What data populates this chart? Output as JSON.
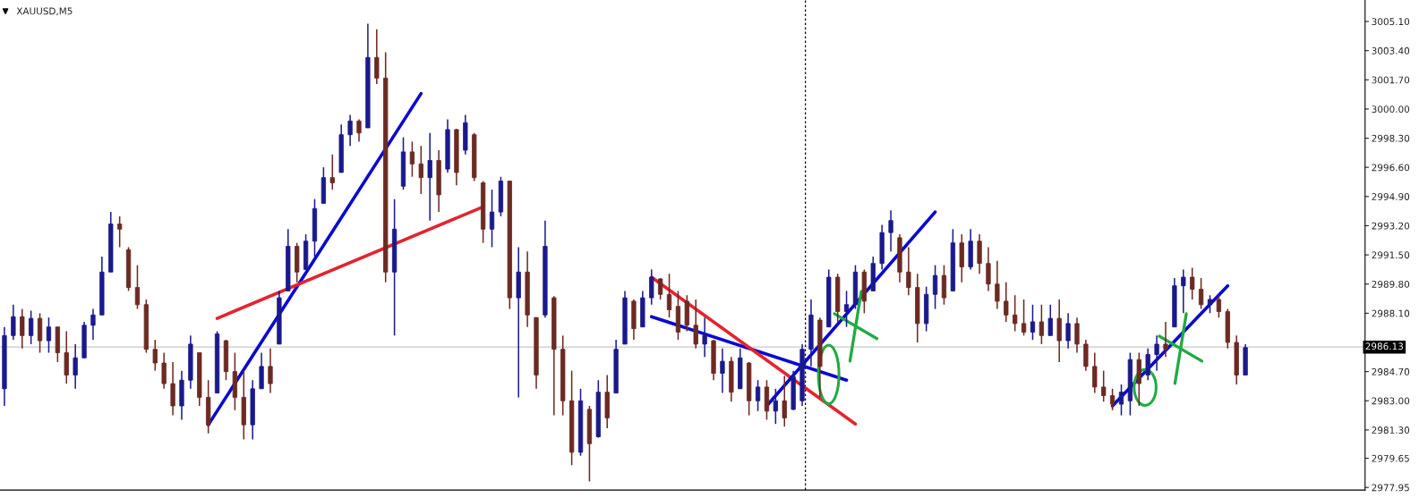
{
  "chart_data": {
    "type": "candlestick",
    "title": "XAUUSD,M5",
    "categories": [
      null,
      null,
      null,
      null,
      null,
      null,
      null,
      null,
      null,
      null,
      null,
      null,
      null,
      null,
      null,
      null,
      null,
      null,
      null,
      null,
      null,
      null,
      null,
      null,
      null,
      null,
      null,
      null,
      null,
      null,
      null,
      null,
      null,
      null,
      null,
      null,
      null,
      null,
      null,
      null,
      null,
      null,
      null,
      null,
      null,
      null,
      null,
      null,
      null,
      null,
      null,
      null,
      null,
      null,
      null,
      null,
      null,
      null,
      null,
      null,
      null,
      null,
      null,
      null,
      null,
      null,
      null,
      null,
      null,
      null,
      null,
      null,
      null,
      null,
      null,
      null,
      null,
      null,
      null,
      null,
      null,
      null,
      null,
      null,
      null,
      null,
      null,
      null,
      null,
      null,
      null,
      null,
      null,
      null,
      null,
      null,
      null,
      null,
      null,
      null,
      null,
      null,
      null,
      null,
      null,
      null,
      null,
      null,
      null,
      null,
      null,
      null,
      null,
      null,
      null,
      null,
      null,
      null,
      null,
      null,
      null,
      null,
      null,
      null,
      null,
      null,
      null,
      null,
      null,
      null,
      null,
      null,
      null,
      null,
      null,
      null,
      null,
      null,
      null,
      null,
      null,
      null,
      null,
      null,
      null,
      null,
      null,
      null,
      null,
      null,
      null,
      null,
      null,
      null
    ],
    "ohlc": [
      [
        2983.7,
        2987.3,
        2982.7,
        2986.8
      ],
      [
        2986.8,
        2988.6,
        2986.55,
        2987.9
      ],
      [
        2987.9,
        2988.35,
        2986.05,
        2986.8
      ],
      [
        2986.8,
        2988.25,
        2986.3,
        2987.8
      ],
      [
        2987.8,
        2988.1,
        2985.8,
        2986.5
      ],
      [
        2986.5,
        2987.85,
        2985.8,
        2987.3
      ],
      [
        2987.3,
        2987.3,
        2985.25,
        2985.8
      ],
      [
        2985.8,
        2987.05,
        2984.0,
        2984.5
      ],
      [
        2984.5,
        2986.3,
        2983.7,
        2985.5
      ],
      [
        2985.5,
        2987.6,
        2985.5,
        2987.4
      ],
      [
        2987.4,
        2988.35,
        2986.55,
        2988.0
      ],
      [
        2988.0,
        2991.4,
        2988.0,
        2990.5
      ],
      [
        2990.5,
        2994.0,
        2990.5,
        2993.3
      ],
      [
        2993.3,
        2993.75,
        2991.95,
        2993.0
      ],
      [
        2991.8,
        2991.95,
        2989.4,
        2989.6
      ],
      [
        2989.6,
        2990.9,
        2988.35,
        2988.6
      ],
      [
        2988.6,
        2988.9,
        2985.8,
        2986.0
      ],
      [
        2986.0,
        2986.55,
        2984.75,
        2985.2
      ],
      [
        2985.2,
        2985.8,
        2983.7,
        2984.0
      ],
      [
        2984.0,
        2985.25,
        2982.15,
        2982.7
      ],
      [
        2982.7,
        2984.75,
        2981.9,
        2984.2
      ],
      [
        2984.2,
        2986.8,
        2983.7,
        2986.3
      ],
      [
        2985.8,
        2985.8,
        2982.7,
        2983.2
      ],
      [
        2983.2,
        2984.2,
        2981.1,
        2981.6
      ],
      [
        2983.45,
        2987.05,
        2983.45,
        2986.9
      ],
      [
        2986.5,
        2986.55,
        2984.2,
        2984.7
      ],
      [
        2984.7,
        2985.8,
        2982.45,
        2983.2
      ],
      [
        2983.2,
        2984.75,
        2980.75,
        2981.6
      ],
      [
        2981.6,
        2984.2,
        2980.75,
        2983.7
      ],
      [
        2983.7,
        2985.8,
        2983.7,
        2985.0
      ],
      [
        2985.0,
        2986.05,
        2983.45,
        2984.0
      ],
      [
        2986.3,
        2989.4,
        2986.3,
        2989.0
      ],
      [
        2989.4,
        2993.0,
        2989.4,
        2992.0
      ],
      [
        2992.0,
        2992.2,
        2989.9,
        2990.5
      ],
      [
        2990.65,
        2992.7,
        2990.65,
        2992.3
      ],
      [
        2992.3,
        2994.75,
        2991.4,
        2994.2
      ],
      [
        2994.5,
        2996.6,
        2994.5,
        2996.0
      ],
      [
        2996.0,
        2997.35,
        2995.3,
        2995.7
      ],
      [
        2996.3,
        2999.1,
        2996.3,
        2998.5
      ],
      [
        2998.5,
        2999.65,
        2997.85,
        2999.3
      ],
      [
        2999.3,
        2999.4,
        2998.1,
        2998.6
      ],
      [
        2998.9,
        3004.97,
        2998.9,
        3003.0
      ],
      [
        3003.0,
        3004.65,
        3001.46,
        3001.8
      ],
      [
        3001.8,
        3003.3,
        2989.9,
        2990.5
      ],
      [
        2990.5,
        2994.75,
        2986.8,
        2993.0
      ],
      [
        2995.5,
        2998.35,
        2995.3,
        2997.5
      ],
      [
        2997.5,
        2998.1,
        2996.05,
        2996.8
      ],
      [
        2996.8,
        2997.85,
        2995.05,
        2996.0
      ],
      [
        2996.0,
        2998.6,
        2993.5,
        2997.0
      ],
      [
        2997.0,
        2997.6,
        2994.0,
        2995.0
      ],
      [
        2996.5,
        2999.4,
        2996.3,
        2998.8
      ],
      [
        2998.8,
        2998.85,
        2995.55,
        2996.3
      ],
      [
        2997.6,
        2999.65,
        2997.35,
        2999.2
      ],
      [
        2998.5,
        2998.6,
        2995.8,
        2996.0
      ],
      [
        2995.7,
        2995.8,
        2992.2,
        2993.0
      ],
      [
        2993.0,
        2995.3,
        2991.95,
        2994.0
      ],
      [
        2994.0,
        2996.05,
        2993.75,
        2995.8
      ],
      [
        2995.8,
        2995.8,
        2988.35,
        2989.0
      ],
      [
        2989.0,
        2991.95,
        2983.2,
        2990.5
      ],
      [
        2990.5,
        2991.7,
        2987.3,
        2988.0
      ],
      [
        2987.85,
        2987.85,
        2983.7,
        2984.5
      ],
      [
        2988.0,
        2993.5,
        2987.85,
        2992.0
      ],
      [
        2989.0,
        2989.1,
        2982.15,
        2986.0
      ],
      [
        2986.0,
        2986.8,
        2982.15,
        2983.0
      ],
      [
        2983.0,
        2984.75,
        2979.25,
        2980.0
      ],
      [
        2980.0,
        2983.7,
        2979.8,
        2983.0
      ],
      [
        2982.5,
        2982.7,
        2978.3,
        2980.5
      ],
      [
        2980.9,
        2984.2,
        2980.85,
        2983.5
      ],
      [
        2983.5,
        2984.5,
        2981.4,
        2982.0
      ],
      [
        2983.45,
        2986.55,
        2983.45,
        2986.0
      ],
      [
        2986.3,
        2989.4,
        2986.3,
        2989.0
      ],
      [
        2988.8,
        2988.9,
        2986.55,
        2987.2
      ],
      [
        2987.3,
        2989.4,
        2987.3,
        2989.0
      ],
      [
        2989.0,
        2990.65,
        2988.6,
        2990.2
      ],
      [
        2990.1,
        2990.15,
        2988.9,
        2989.2
      ],
      [
        2989.2,
        2990.4,
        2987.85,
        2988.3
      ],
      [
        2988.5,
        2989.4,
        2986.55,
        2987.0
      ],
      [
        2988.8,
        2989.15,
        2987.05,
        2987.4
      ],
      [
        2987.4,
        2988.9,
        2986.05,
        2986.3
      ],
      [
        2986.3,
        2987.85,
        2985.55,
        2986.8
      ],
      [
        2986.5,
        2986.55,
        2984.2,
        2984.6
      ],
      [
        2984.6,
        2986.05,
        2983.45,
        2985.3
      ],
      [
        2985.3,
        2985.55,
        2982.95,
        2983.5
      ],
      [
        2983.7,
        2986.05,
        2983.7,
        2985.5
      ],
      [
        2985.2,
        2985.25,
        2982.15,
        2983.0
      ],
      [
        2983.0,
        2984.2,
        2982.4,
        2983.8
      ],
      [
        2983.8,
        2984.2,
        2981.9,
        2982.4
      ],
      [
        2982.4,
        2983.7,
        2981.65,
        2983.0
      ],
      [
        2983.0,
        2984.45,
        2981.5,
        2982.0
      ],
      [
        2982.5,
        2984.75,
        2982.45,
        2984.4
      ],
      [
        2983.0,
        2986.3,
        2982.7,
        2986.0
      ],
      [
        2986.0,
        2988.9,
        2985.0,
        2988.0
      ],
      [
        2987.7,
        2987.85,
        2983.2,
        2985.0
      ],
      [
        2987.3,
        2990.65,
        2987.3,
        2990.2
      ],
      [
        2990.2,
        2990.4,
        2987.6,
        2988.2
      ],
      [
        2988.2,
        2989.4,
        2987.3,
        2988.6
      ],
      [
        2988.6,
        2990.9,
        2988.35,
        2990.5
      ],
      [
        2990.5,
        2990.65,
        2988.1,
        2988.8
      ],
      [
        2989.4,
        2991.4,
        2989.4,
        2991.0
      ],
      [
        2991.0,
        2993.25,
        2990.65,
        2992.8
      ],
      [
        2992.8,
        2994.1,
        2991.7,
        2993.5
      ],
      [
        2992.5,
        2992.7,
        2989.9,
        2990.5
      ],
      [
        2990.5,
        2991.95,
        2989.15,
        2989.6
      ],
      [
        2989.6,
        2990.4,
        2986.4,
        2987.5
      ],
      [
        2987.5,
        2989.65,
        2987.05,
        2989.2
      ],
      [
        2989.2,
        2990.9,
        2988.35,
        2990.3
      ],
      [
        2990.3,
        2990.9,
        2988.6,
        2989.0
      ],
      [
        2989.4,
        2993.0,
        2989.4,
        2992.2
      ],
      [
        2992.2,
        2992.7,
        2989.9,
        2990.8
      ],
      [
        2990.8,
        2993.0,
        2990.65,
        2992.3
      ],
      [
        2992.3,
        2992.7,
        2990.4,
        2991.0
      ],
      [
        2991.0,
        2991.95,
        2989.4,
        2989.8
      ],
      [
        2989.8,
        2991.15,
        2988.35,
        2988.8
      ],
      [
        2988.8,
        2989.9,
        2987.6,
        2988.0
      ],
      [
        2988.0,
        2989.15,
        2987.05,
        2987.5
      ],
      [
        2987.5,
        2988.9,
        2986.8,
        2987.0
      ],
      [
        2987.0,
        2988.6,
        2986.55,
        2987.6
      ],
      [
        2987.6,
        2988.6,
        2986.3,
        2986.8
      ],
      [
        2986.8,
        2988.6,
        2986.8,
        2987.8
      ],
      [
        2987.8,
        2988.9,
        2985.25,
        2986.5
      ],
      [
        2986.5,
        2988.1,
        2986.05,
        2987.5
      ],
      [
        2987.5,
        2987.85,
        2985.8,
        2986.3
      ],
      [
        2986.3,
        2986.55,
        2984.75,
        2985.0
      ],
      [
        2985.0,
        2985.8,
        2983.45,
        2983.8
      ],
      [
        2983.8,
        2984.75,
        2982.95,
        2983.3
      ],
      [
        2983.3,
        2983.7,
        2982.45,
        2982.8
      ],
      [
        2982.8,
        2983.95,
        2982.15,
        2983.5
      ],
      [
        2983.0,
        2985.8,
        2982.15,
        2985.4
      ],
      [
        2985.4,
        2985.8,
        2982.7,
        2984.0
      ],
      [
        2984.5,
        2986.05,
        2984.2,
        2985.7
      ],
      [
        2985.7,
        2986.8,
        2984.75,
        2986.3
      ],
      [
        2986.3,
        2987.6,
        2985.55,
        2986.0
      ],
      [
        2987.3,
        2990.15,
        2987.3,
        2989.7
      ],
      [
        2989.7,
        2990.65,
        2988.1,
        2990.2
      ],
      [
        2990.2,
        2990.75,
        2988.9,
        2989.5
      ],
      [
        2989.5,
        2990.15,
        2988.35,
        2988.6
      ],
      [
        2988.6,
        2989.15,
        2988.1,
        2988.9
      ],
      [
        2988.9,
        2989.15,
        2987.85,
        2988.2
      ],
      [
        2988.2,
        2988.35,
        2986.05,
        2986.4
      ],
      [
        2986.4,
        2986.8,
        2983.95,
        2984.5
      ],
      [
        2984.5,
        2986.3,
        2984.5,
        2986.1
      ],
      null,
      null,
      null,
      null,
      null,
      null,
      null,
      null,
      null,
      null,
      null,
      null,
      null
    ],
    "colors": [
      "#1a1a8c",
      "#1a1a8c",
      "#6b2a22",
      "#1a1a8c",
      "#6b2a22",
      "#1a1a8c",
      "#6b2a22",
      "#6b2a22",
      "#1a1a8c",
      "#1a1a8c",
      "#1a1a8c",
      "#1a1a8c",
      "#1a1a8c",
      "#6b2a22",
      "#6b2a22",
      "#6b2a22",
      "#6b2a22",
      "#6b2a22",
      "#6b2a22",
      "#6b2a22",
      "#1a1a8c",
      "#1a1a8c",
      "#6b2a22",
      "#6b2a22",
      "#1a1a8c",
      "#6b2a22",
      "#6b2a22",
      "#6b2a22",
      "#1a1a8c",
      "#1a1a8c",
      "#6b2a22",
      "#1a1a8c",
      "#1a1a8c",
      "#6b2a22",
      "#1a1a8c",
      "#1a1a8c",
      "#1a1a8c",
      "#6b2a22",
      "#1a1a8c",
      "#1a1a8c",
      "#6b2a22",
      "#1a1a8c",
      "#6b2a22",
      "#6b2a22",
      "#1a1a8c",
      "#1a1a8c",
      "#6b2a22",
      "#6b2a22",
      "#1a1a8c",
      "#6b2a22",
      "#1a1a8c",
      "#6b2a22",
      "#1a1a8c",
      "#6b2a22",
      "#6b2a22",
      "#1a1a8c",
      "#1a1a8c",
      "#6b2a22",
      "#1a1a8c",
      "#6b2a22",
      "#6b2a22",
      "#1a1a8c",
      "#6b2a22",
      "#6b2a22",
      "#6b2a22",
      "#1a1a8c",
      "#6b2a22",
      "#1a1a8c",
      "#6b2a22",
      "#1a1a8c",
      "#1a1a8c",
      "#6b2a22",
      "#1a1a8c",
      "#1a1a8c",
      "#6b2a22",
      "#6b2a22",
      "#6b2a22",
      "#6b2a22",
      "#6b2a22",
      "#1a1a8c",
      "#6b2a22",
      "#1a1a8c",
      "#6b2a22",
      "#1a1a8c",
      "#6b2a22",
      "#1a1a8c",
      "#6b2a22",
      "#1a1a8c",
      "#6b2a22",
      "#1a1a8c",
      "#1a1a8c",
      "#1a1a8c",
      "#6b2a22",
      "#1a1a8c",
      "#6b2a22",
      "#1a1a8c",
      "#1a1a8c",
      "#6b2a22",
      "#1a1a8c",
      "#1a1a8c",
      "#1a1a8c",
      "#6b2a22",
      "#6b2a22",
      "#6b2a22",
      "#1a1a8c",
      "#1a1a8c",
      "#6b2a22",
      "#1a1a8c",
      "#6b2a22",
      "#1a1a8c",
      "#6b2a22",
      "#6b2a22",
      "#6b2a22",
      "#6b2a22",
      "#6b2a22",
      "#6b2a22",
      "#1a1a8c",
      "#6b2a22",
      "#1a1a8c",
      "#6b2a22",
      "#1a1a8c",
      "#6b2a22",
      "#6b2a22",
      "#6b2a22",
      "#6b2a22",
      "#6b2a22",
      "#1a1a8c",
      "#1a1a8c",
      "#6b2a22",
      "#1a1a8c",
      "#1a1a8c",
      "#6b2a22",
      "#1a1a8c",
      "#1a1a8c",
      "#6b2a22",
      "#6b2a22",
      "#1a1a8c",
      "#6b2a22",
      "#6b2a22",
      "#6b2a22",
      "#1a1a8c",
      null,
      null,
      null,
      null,
      null,
      null,
      null,
      null,
      null,
      null,
      null,
      null,
      null
    ],
    "series": [
      {
        "type": "line",
        "color": "#0a0ad0",
        "values": [
          null,
          null,
          null,
          null,
          null,
          null,
          null,
          null,
          null,
          null,
          null,
          null,
          null,
          null,
          null,
          null,
          null,
          null,
          null,
          null,
          null,
          null,
          null,
          2981.6,
          null,
          null,
          null,
          null,
          null,
          null,
          null,
          null,
          null,
          null,
          null,
          null,
          null,
          null,
          null,
          null,
          null,
          null,
          null,
          null,
          null,
          null,
          null,
          3000.9,
          null,
          null,
          null,
          null,
          null,
          null,
          null,
          null,
          null,
          null,
          null,
          null,
          null,
          null,
          null,
          null,
          null,
          null,
          null,
          null,
          null,
          null,
          null,
          null,
          null,
          null,
          null,
          null,
          null,
          null,
          null,
          null,
          null,
          null,
          null,
          null,
          null,
          null,
          null,
          null,
          null,
          null,
          null,
          null,
          null,
          null,
          null,
          null,
          null,
          null,
          null,
          null,
          null,
          null,
          null,
          null,
          null,
          null,
          null,
          null,
          null,
          null,
          null,
          null,
          null,
          null,
          null,
          null,
          null,
          null,
          null,
          null,
          null,
          null,
          null,
          null,
          null,
          null,
          null,
          null,
          null,
          null,
          null,
          null,
          null,
          null,
          null,
          null,
          null,
          null,
          null,
          null,
          null,
          null,
          null,
          null,
          null,
          null,
          null,
          null,
          null,
          null,
          null,
          null,
          null,
          null
        ]
      },
      {
        "type": "line",
        "color": "#e0262f",
        "values": [
          null,
          null,
          null,
          null,
          null,
          null,
          null,
          null,
          null,
          null,
          null,
          null,
          null,
          null,
          null,
          null,
          null,
          null,
          null,
          null,
          null,
          null,
          null,
          null,
          2987.8,
          null,
          null,
          null,
          null,
          null,
          null,
          null,
          null,
          null,
          null,
          null,
          null,
          null,
          null,
          null,
          null,
          null,
          null,
          null,
          null,
          null,
          null,
          null,
          null,
          null,
          null,
          null,
          null,
          null,
          2994.3,
          null,
          null,
          null,
          null,
          null,
          null,
          null,
          null,
          null,
          null,
          null,
          null,
          null,
          null,
          null,
          null,
          null,
          null,
          null,
          null,
          null,
          null,
          null,
          null,
          null,
          null,
          null,
          null,
          null,
          null,
          null,
          null,
          null,
          null,
          null,
          null,
          null,
          null,
          null,
          null,
          null,
          null,
          null,
          null,
          null,
          null,
          null,
          null,
          null,
          null,
          null,
          null,
          null,
          null,
          null,
          null,
          null,
          null,
          null,
          null,
          null,
          null,
          null,
          null,
          null,
          null,
          null,
          null,
          null,
          null,
          null,
          null,
          null,
          null,
          null,
          null,
          null,
          null,
          null,
          null,
          null,
          null,
          null,
          null,
          null,
          null,
          null,
          null,
          null,
          null,
          null,
          null,
          null,
          null,
          null,
          null,
          null,
          null,
          null
        ]
      },
      {
        "type": "line",
        "color": "#0a0ad0",
        "values": [
          null,
          null,
          null,
          null,
          null,
          null,
          null,
          null,
          null,
          null,
          null,
          null,
          null,
          null,
          null,
          null,
          null,
          null,
          null,
          null,
          null,
          null,
          null,
          null,
          null,
          null,
          null,
          null,
          null,
          null,
          null,
          null,
          null,
          null,
          null,
          null,
          null,
          null,
          null,
          null,
          null,
          null,
          null,
          null,
          null,
          null,
          null,
          null,
          null,
          null,
          null,
          null,
          null,
          null,
          null,
          null,
          null,
          null,
          null,
          null,
          null,
          null,
          null,
          null,
          null,
          null,
          null,
          null,
          null,
          null,
          null,
          null,
          null,
          2987.9,
          null,
          null,
          null,
          null,
          null,
          null,
          null,
          null,
          null,
          null,
          null,
          null,
          null,
          null,
          null,
          null,
          null,
          null,
          null,
          null,
          null,
          2984.2,
          null,
          null,
          null,
          null,
          null,
          null,
          null,
          null,
          null,
          null,
          null,
          null,
          null,
          null,
          null,
          null,
          null,
          null,
          null,
          null,
          null,
          null,
          null,
          null,
          null,
          null,
          null,
          null,
          null,
          null,
          null,
          null,
          null,
          null,
          null,
          null,
          null,
          null,
          null,
          null,
          null,
          null,
          null,
          null,
          null,
          null,
          null,
          null,
          null,
          null,
          null,
          null,
          null,
          null,
          null,
          null,
          null,
          null
        ]
      },
      {
        "type": "line",
        "color": "#e0262f",
        "values": [
          null,
          null,
          null,
          null,
          null,
          null,
          null,
          null,
          null,
          null,
          null,
          null,
          null,
          null,
          null,
          null,
          null,
          null,
          null,
          null,
          null,
          null,
          null,
          null,
          null,
          null,
          null,
          null,
          null,
          null,
          null,
          null,
          null,
          null,
          null,
          null,
          null,
          null,
          null,
          null,
          null,
          null,
          null,
          null,
          null,
          null,
          null,
          null,
          null,
          null,
          null,
          null,
          null,
          null,
          null,
          null,
          null,
          null,
          null,
          null,
          null,
          null,
          null,
          null,
          null,
          null,
          null,
          null,
          null,
          null,
          null,
          null,
          null,
          2990.2,
          null,
          null,
          null,
          null,
          null,
          null,
          null,
          null,
          null,
          null,
          null,
          null,
          null,
          null,
          null,
          null,
          null,
          null,
          null,
          null,
          null,
          null,
          2981.65,
          null,
          null,
          null,
          null,
          null,
          null,
          null,
          null,
          null,
          null,
          null,
          null,
          null,
          null,
          null,
          null,
          null,
          null,
          null,
          null,
          null,
          null,
          null,
          null,
          null,
          null,
          null,
          null,
          null,
          null,
          null,
          null,
          null,
          null,
          null,
          null,
          null,
          null,
          null,
          null,
          null,
          null,
          null,
          null,
          null,
          null,
          null,
          null,
          null,
          null,
          null,
          null,
          null,
          null,
          null,
          null,
          null
        ]
      },
      {
        "type": "line",
        "color": "#0a0ad0",
        "values": [
          null,
          null,
          null,
          null,
          null,
          null,
          null,
          null,
          null,
          null,
          null,
          null,
          null,
          null,
          null,
          null,
          null,
          null,
          null,
          null,
          null,
          null,
          null,
          null,
          null,
          null,
          null,
          null,
          null,
          null,
          null,
          null,
          null,
          null,
          null,
          null,
          null,
          null,
          null,
          null,
          null,
          null,
          null,
          null,
          null,
          null,
          null,
          null,
          null,
          null,
          null,
          null,
          null,
          null,
          null,
          null,
          null,
          null,
          null,
          null,
          null,
          null,
          null,
          null,
          null,
          null,
          null,
          null,
          null,
          null,
          null,
          null,
          null,
          null,
          null,
          null,
          null,
          null,
          null,
          null,
          null,
          null,
          null,
          null,
          null,
          null,
          2982.7,
          null,
          null,
          null,
          null,
          null,
          null,
          null,
          null,
          null,
          null,
          null,
          null,
          null,
          null,
          null,
          null,
          null,
          null,
          2994.0,
          null,
          null,
          null,
          null,
          null,
          null,
          null,
          null,
          null,
          null,
          null,
          null,
          null,
          null,
          null,
          null,
          null,
          null,
          null,
          null,
          null,
          null,
          null,
          null,
          null,
          null,
          null,
          null,
          null,
          null,
          null,
          null,
          null,
          null,
          null,
          null,
          null,
          null,
          null,
          null,
          null,
          null,
          null,
          null,
          null,
          null,
          null,
          null
        ]
      },
      {
        "type": "line",
        "color": "#0a0ad0",
        "values": [
          null,
          null,
          null,
          null,
          null,
          null,
          null,
          null,
          null,
          null,
          null,
          null,
          null,
          null,
          null,
          null,
          null,
          null,
          null,
          null,
          null,
          null,
          null,
          null,
          null,
          null,
          null,
          null,
          null,
          null,
          null,
          null,
          null,
          null,
          null,
          null,
          null,
          null,
          null,
          null,
          null,
          null,
          null,
          null,
          null,
          null,
          null,
          null,
          null,
          null,
          null,
          null,
          null,
          null,
          null,
          null,
          null,
          null,
          null,
          null,
          null,
          null,
          null,
          null,
          null,
          null,
          null,
          null,
          null,
          null,
          null,
          null,
          null,
          null,
          null,
          null,
          null,
          null,
          null,
          null,
          null,
          null,
          null,
          null,
          null,
          null,
          null,
          null,
          null,
          null,
          null,
          null,
          null,
          null,
          null,
          null,
          null,
          null,
          null,
          null,
          null,
          null,
          null,
          null,
          null,
          null,
          null,
          null,
          null,
          null,
          null,
          null,
          null,
          null,
          null,
          null,
          null,
          null,
          null,
          null,
          null,
          null,
          null,
          null,
          null,
          2982.7,
          null,
          null,
          null,
          null,
          null,
          null,
          null,
          null,
          null,
          null,
          null,
          null,
          2989.7,
          null,
          null,
          null,
          null,
          null,
          null,
          null,
          null,
          null,
          null,
          null,
          null,
          null,
          null,
          null
        ]
      }
    ],
    "ylim": [
      2977.8,
      3006.35
    ],
    "yticks": [
      {
        "value": 3005.1,
        "label": "3005.10"
      },
      {
        "value": 3003.4,
        "label": "3003.40"
      },
      {
        "value": 3001.7,
        "label": "3001.70"
      },
      {
        "value": 3000.0,
        "label": "3000.00"
      },
      {
        "value": 2998.3,
        "label": "2998.30"
      },
      {
        "value": 2996.6,
        "label": "2996.60"
      },
      {
        "value": 2994.9,
        "label": "2994.90"
      },
      {
        "value": 2993.2,
        "label": "2993.20"
      },
      {
        "value": 2991.5,
        "label": "2991.50"
      },
      {
        "value": 2989.8,
        "label": "2989.80"
      },
      {
        "value": 2988.1,
        "label": "2988.10"
      },
      {
        "value": 2986.4,
        "label": null
      },
      {
        "value": 2984.7,
        "label": "2984.70"
      },
      {
        "value": 2983.0,
        "label": "2983.00"
      },
      {
        "value": 2981.3,
        "label": "2981.30"
      },
      2979.65,
      {
        "value": 2977.95,
        "label": "2977.95"
      }
    ],
    "ref_lines": [
      {
        "axis": "y",
        "value": 2986.13,
        "label": "2986.13",
        "color": "#c8c8c8",
        "line_style": "solid"
      }
    ],
    "tick_labels": "y"
  }
}
